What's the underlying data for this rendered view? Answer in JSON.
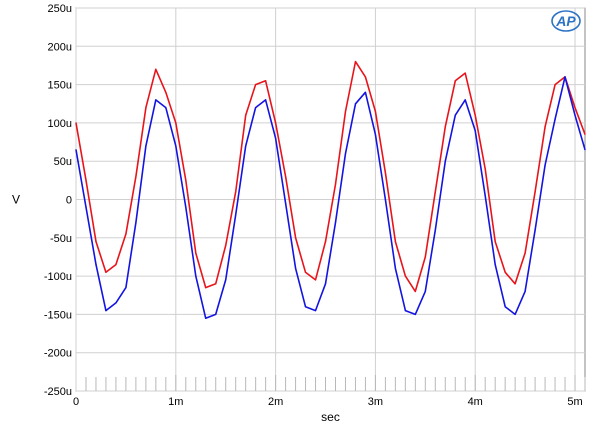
{
  "chart_data": {
    "type": "line",
    "title": "",
    "xlabel": "sec",
    "ylabel": "V",
    "xlim": [
      0,
      0.0051
    ],
    "ylim": [
      -250,
      250
    ],
    "grid": true,
    "legend": "none",
    "x_ticks": [
      {
        "value": 0,
        "label": "0"
      },
      {
        "value": 0.001,
        "label": "1m"
      },
      {
        "value": 0.002,
        "label": "2m"
      },
      {
        "value": 0.003,
        "label": "3m"
      },
      {
        "value": 0.004,
        "label": "4m"
      },
      {
        "value": 0.005,
        "label": "5m"
      }
    ],
    "y_ticks": [
      {
        "value": 250,
        "label": "250u"
      },
      {
        "value": 200,
        "label": "200u"
      },
      {
        "value": 150,
        "label": "150u"
      },
      {
        "value": 100,
        "label": "100u"
      },
      {
        "value": 50,
        "label": "50u"
      },
      {
        "value": 0,
        "label": "0"
      },
      {
        "value": -50,
        "label": "-50u"
      },
      {
        "value": -100,
        "label": "-100u"
      },
      {
        "value": -150,
        "label": "-150u"
      },
      {
        "value": -200,
        "label": "-200u"
      },
      {
        "value": -250,
        "label": "-250u"
      }
    ],
    "x": [
      0,
      0.0001,
      0.0002,
      0.0003,
      0.0004,
      0.0005,
      0.0006,
      0.0007,
      0.0008,
      0.0009,
      0.001,
      0.0011,
      0.0012,
      0.0013,
      0.0014,
      0.0015,
      0.0016,
      0.0017,
      0.0018,
      0.0019,
      0.002,
      0.0021,
      0.0022,
      0.0023,
      0.0024,
      0.0025,
      0.0026,
      0.0027,
      0.0028,
      0.0029,
      0.003,
      0.0031,
      0.0032,
      0.0033,
      0.0034,
      0.0035,
      0.0036,
      0.0037,
      0.0038,
      0.0039,
      0.004,
      0.0041,
      0.0042,
      0.0043,
      0.0044,
      0.0045,
      0.0046,
      0.0047,
      0.0048,
      0.0049,
      0.005,
      0.0051
    ],
    "series": [
      {
        "color": "#e8141b",
        "values": [
          100,
          25,
          -55,
          -95,
          -85,
          -45,
          30,
          120,
          170,
          140,
          100,
          25,
          -70,
          -115,
          -110,
          -60,
          10,
          110,
          150,
          155,
          100,
          30,
          -50,
          -95,
          -105,
          -55,
          20,
          115,
          180,
          160,
          115,
          35,
          -55,
          -100,
          -120,
          -75,
          10,
          95,
          155,
          165,
          110,
          40,
          -55,
          -95,
          -110,
          -70,
          10,
          95,
          150,
          160,
          120,
          85
        ]
      },
      {
        "color": "#1414e0",
        "values": [
          65,
          -10,
          -85,
          -145,
          -135,
          -115,
          -30,
          70,
          130,
          120,
          70,
          -10,
          -100,
          -155,
          -150,
          -105,
          -20,
          70,
          120,
          130,
          80,
          -5,
          -90,
          -140,
          -145,
          -110,
          -30,
          60,
          125,
          140,
          85,
          0,
          -90,
          -145,
          -150,
          -120,
          -40,
          50,
          110,
          130,
          90,
          5,
          -85,
          -140,
          -150,
          -120,
          -40,
          45,
          105,
          160,
          110,
          65
        ]
      }
    ]
  },
  "logo": {
    "text": "AP",
    "color": "#2c73c5"
  }
}
